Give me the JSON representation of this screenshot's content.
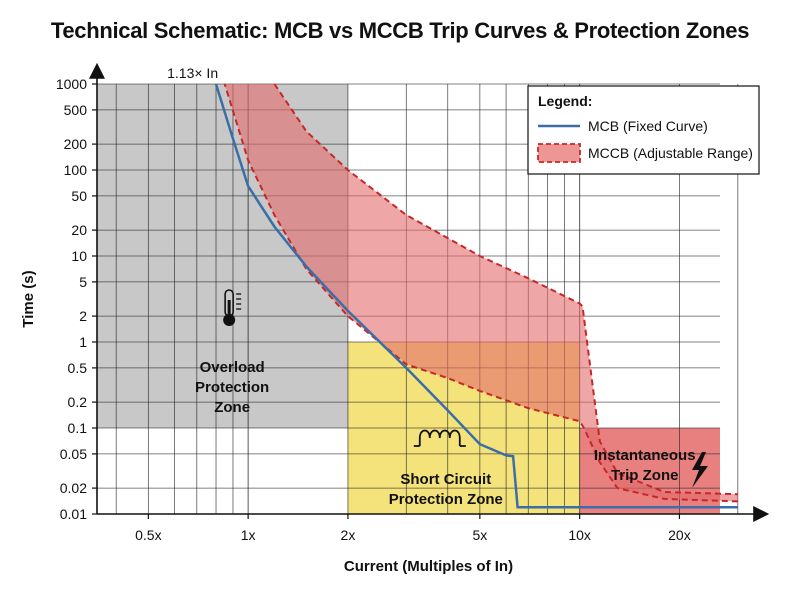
{
  "title": "Technical Schematic: MCB vs MCCB Trip Curves & Protection Zones",
  "chart_data": {
    "type": "line",
    "xscale": "log",
    "yscale": "log",
    "xlim": [
      0.35,
      35
    ],
    "ylim": [
      0.01,
      1000
    ],
    "xlabel": "Current (Multiples of In)",
    "ylabel": "Time (s)",
    "x_ticks": [
      {
        "value": 0.5,
        "label": "0.5x"
      },
      {
        "value": 1,
        "label": "1x"
      },
      {
        "value": 2,
        "label": "2x"
      },
      {
        "value": 5,
        "label": "5x"
      },
      {
        "value": 10,
        "label": "10x"
      },
      {
        "value": 20,
        "label": "20x"
      }
    ],
    "y_ticks": [
      {
        "value": 1000,
        "label": "1000"
      },
      {
        "value": 500,
        "label": "500"
      },
      {
        "value": 200,
        "label": "200"
      },
      {
        "value": 100,
        "label": "100"
      },
      {
        "value": 50,
        "label": "50"
      },
      {
        "value": 20,
        "label": "20"
      },
      {
        "value": 10,
        "label": "10"
      },
      {
        "value": 5,
        "label": "5"
      },
      {
        "value": 2,
        "label": "2"
      },
      {
        "value": 1,
        "label": "1"
      },
      {
        "value": 0.5,
        "label": "0.5"
      },
      {
        "value": 0.2,
        "label": "0.2"
      },
      {
        "value": 0.1,
        "label": "0.1"
      },
      {
        "value": 0.05,
        "label": "0.05"
      },
      {
        "value": 0.02,
        "label": "0.02"
      },
      {
        "value": 0.01,
        "label": "0.01"
      }
    ],
    "annotation": {
      "text": "1.13× In",
      "x": 0.68,
      "y": 1000
    },
    "series": [
      {
        "name": "MCB (Fixed Curve)",
        "style": "solid-line",
        "color": "#3b6ea8",
        "points": [
          [
            0.8,
            1000
          ],
          [
            0.9,
            230
          ],
          [
            1.0,
            65
          ],
          [
            1.2,
            22
          ],
          [
            1.5,
            7.5
          ],
          [
            2.0,
            2.3
          ],
          [
            3.0,
            0.5
          ],
          [
            4.0,
            0.16
          ],
          [
            5.0,
            0.065
          ],
          [
            6.0,
            0.048
          ],
          [
            6.3,
            0.047
          ],
          [
            6.5,
            0.012
          ],
          [
            30,
            0.012
          ]
        ]
      },
      {
        "name": "MCCB (Adjustable Range)",
        "style": "dashed-band",
        "color": "#c62828",
        "fill": "#e46a6a",
        "upper": [
          [
            1.2,
            1000
          ],
          [
            1.5,
            280
          ],
          [
            2.0,
            100
          ],
          [
            3.0,
            30
          ],
          [
            5.0,
            10
          ],
          [
            7.0,
            5.5
          ],
          [
            10.0,
            2.8
          ],
          [
            10.2,
            2.6
          ],
          [
            11.5,
            0.07
          ],
          [
            13,
            0.03
          ],
          [
            18,
            0.018
          ],
          [
            30,
            0.017
          ]
        ],
        "lower": [
          [
            30,
            0.014
          ],
          [
            18,
            0.015
          ],
          [
            13,
            0.02
          ],
          [
            11.5,
            0.04
          ],
          [
            10.3,
            0.1
          ],
          [
            10.0,
            0.12
          ],
          [
            7.0,
            0.17
          ],
          [
            5.0,
            0.27
          ],
          [
            4.0,
            0.38
          ],
          [
            3.0,
            0.55
          ],
          [
            2.0,
            2.0
          ],
          [
            1.5,
            7
          ],
          [
            1.2,
            30
          ],
          [
            1.0,
            130
          ],
          [
            0.85,
            1000
          ]
        ]
      }
    ],
    "zones": [
      {
        "name": "overload",
        "label_lines": [
          "Overload",
          "Protection",
          "Zone"
        ],
        "x_range": [
          0.35,
          2.0
        ],
        "y_range": [
          0.1,
          1000
        ],
        "color": "#c8c8c8"
      },
      {
        "name": "short-circuit",
        "label_lines": [
          "Short Circuit",
          "Protection Zone"
        ],
        "x_range": [
          2.0,
          10.0
        ],
        "y_range": [
          0.01,
          1.0
        ],
        "color": "#f4e37a"
      },
      {
        "name": "instantaneous",
        "label_lines": [
          "Instantaneous",
          "Trip Zone"
        ],
        "x_range": [
          10.0,
          30.0
        ],
        "y_range": [
          0.01,
          0.1
        ],
        "color": "#e46a6a"
      }
    ],
    "legend": {
      "title": "Legend:",
      "position": "top-right"
    }
  }
}
